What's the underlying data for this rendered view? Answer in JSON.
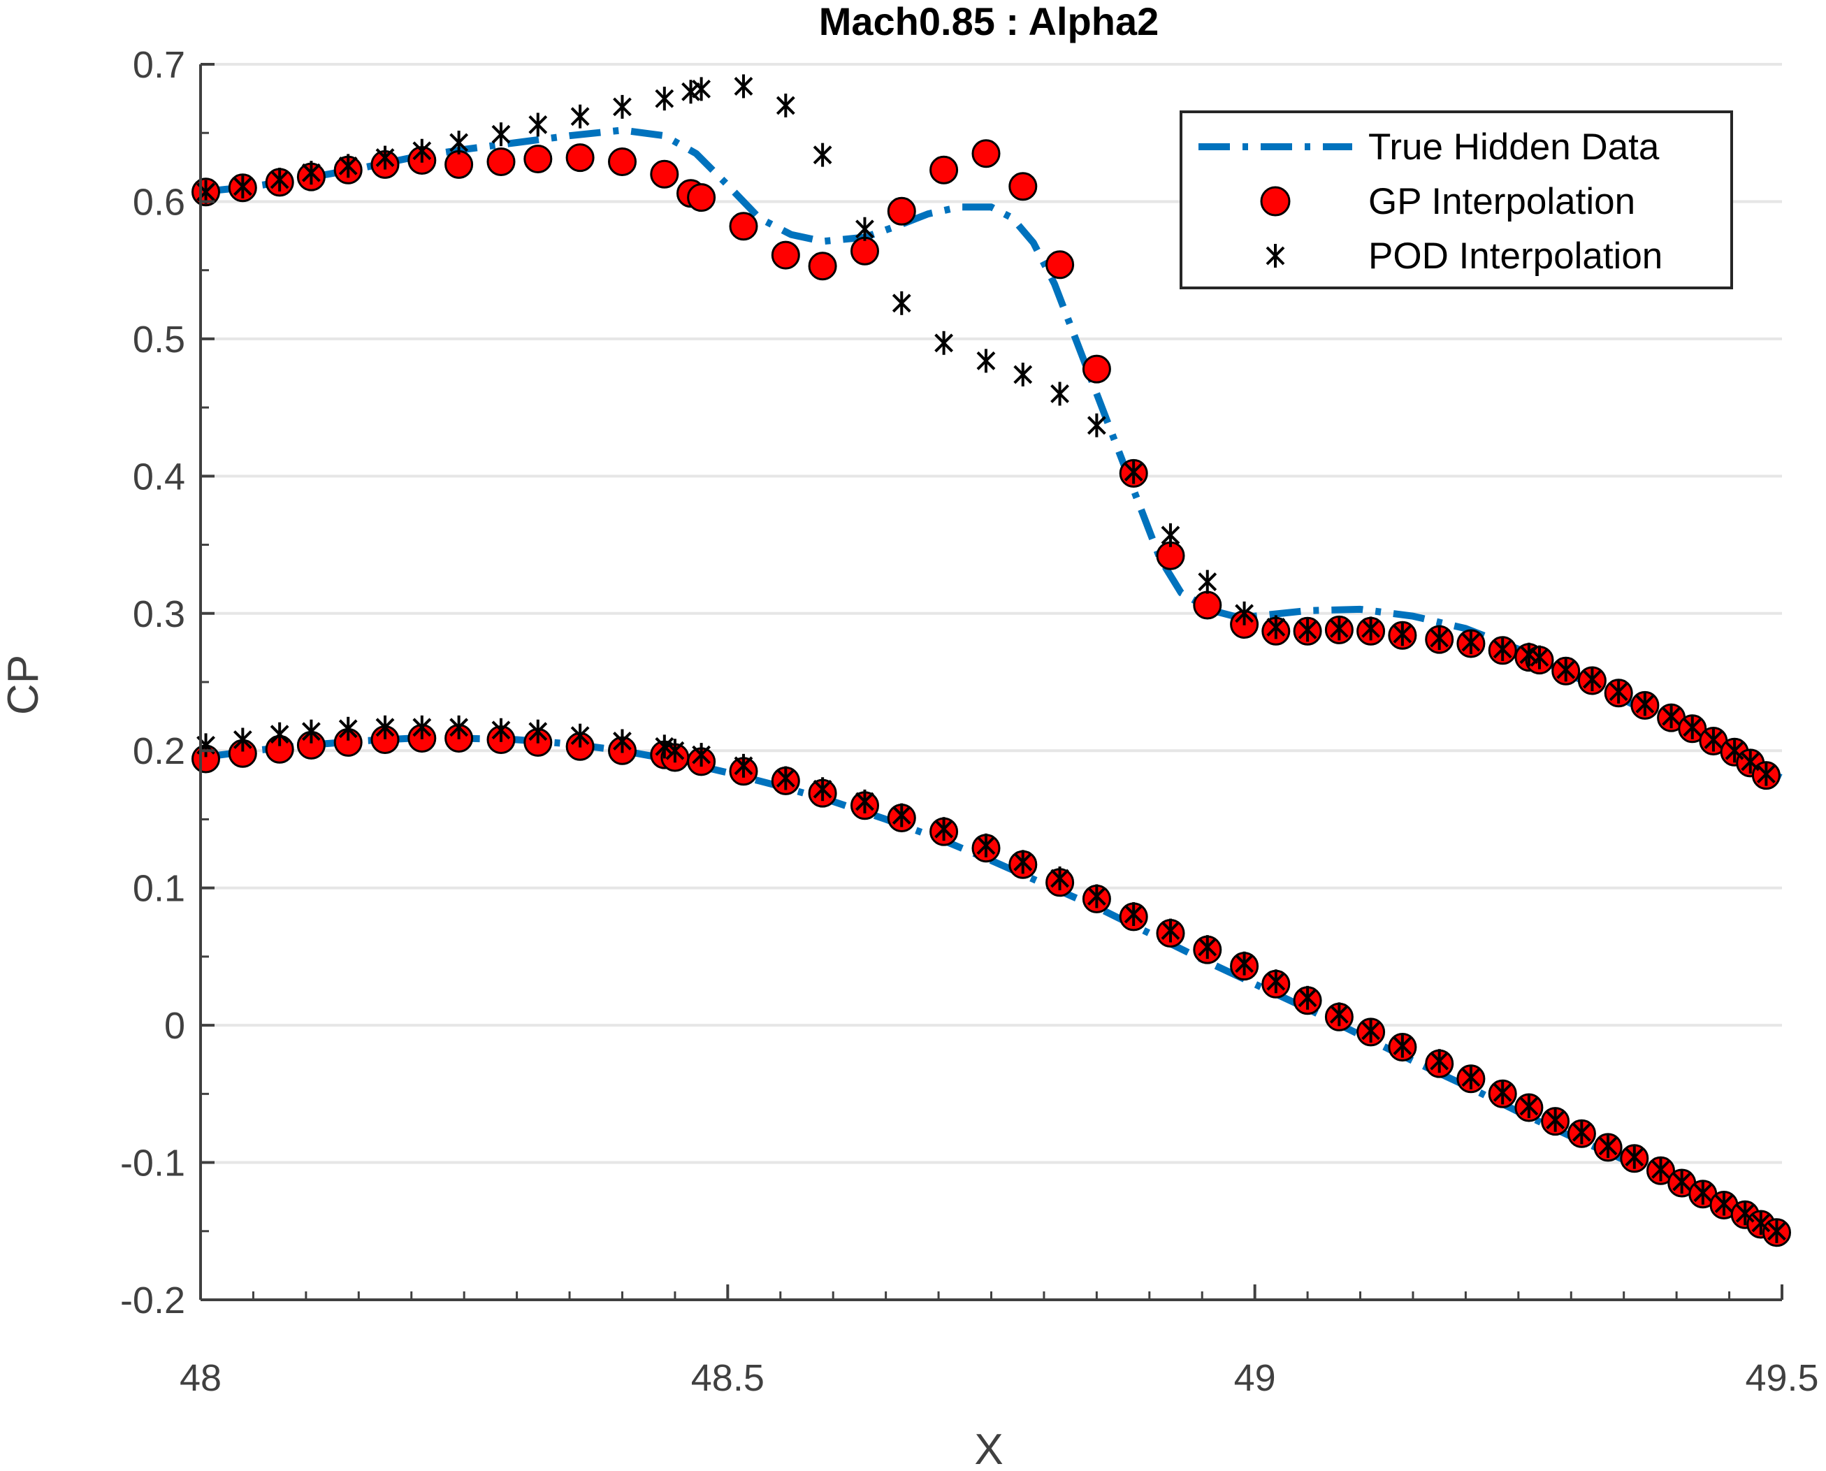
{
  "chart_data": {
    "type": "scatter",
    "title": "Mach0.85 : Alpha2",
    "xlabel": "X",
    "ylabel": "CP",
    "xlim": [
      48,
      49.5
    ],
    "ylim": [
      -0.2,
      0.7
    ],
    "xticks": [
      "48",
      "48.5",
      "49",
      "49.5"
    ],
    "yticks": [
      "-0.2",
      "-0.1",
      "0",
      "0.1",
      "0.2",
      "0.3",
      "0.4",
      "0.5",
      "0.6",
      "0.7"
    ],
    "grid": "horizontal",
    "legend_position": "top-right",
    "colors": {
      "true": "#0072BD",
      "gp_fill": "#FF0000",
      "pod": "#000000",
      "grid": "#E6E6E6",
      "axis": "#404040"
    },
    "series": [
      {
        "name": "True Hidden Data",
        "style": "dash-dot line",
        "segments": [
          {
            "x": [
              48.0,
              48.05,
              48.1,
              48.15,
              48.2,
              48.25,
              48.3,
              48.35,
              48.4,
              48.44,
              48.47,
              48.5,
              48.53,
              48.56,
              48.59,
              48.63,
              48.66,
              48.69,
              48.72,
              48.75,
              48.77,
              48.79,
              48.81,
              48.83,
              48.85,
              48.87,
              48.89,
              48.91,
              48.93,
              48.96,
              48.98,
              49.0,
              49.05,
              49.1,
              49.15,
              49.2,
              49.25,
              49.3,
              49.35,
              49.4,
              49.45,
              49.5
            ],
            "y": [
              0.607,
              0.611,
              0.617,
              0.624,
              0.632,
              0.638,
              0.643,
              0.648,
              0.652,
              0.648,
              0.635,
              0.612,
              0.588,
              0.576,
              0.571,
              0.574,
              0.582,
              0.591,
              0.596,
              0.596,
              0.588,
              0.57,
              0.54,
              0.5,
              0.46,
              0.42,
              0.38,
              0.34,
              0.315,
              0.302,
              0.298,
              0.298,
              0.302,
              0.303,
              0.298,
              0.289,
              0.274,
              0.255,
              0.237,
              0.218,
              0.198,
              0.18
            ]
          },
          {
            "x": [
              48.0,
              48.05,
              48.1,
              48.15,
              48.2,
              48.25,
              48.3,
              48.35,
              48.4,
              48.45,
              48.5,
              48.55,
              48.6,
              48.65,
              48.7,
              48.75,
              48.8,
              48.85,
              48.9,
              48.95,
              49.0,
              49.05,
              49.1,
              49.15,
              49.2,
              49.25,
              49.3,
              49.35,
              49.4,
              49.45,
              49.5
            ],
            "y": [
              0.195,
              0.2,
              0.204,
              0.207,
              0.209,
              0.209,
              0.208,
              0.205,
              0.2,
              0.193,
              0.184,
              0.174,
              0.163,
              0.15,
              0.136,
              0.12,
              0.103,
              0.086,
              0.067,
              0.048,
              0.03,
              0.012,
              -0.007,
              -0.026,
              -0.044,
              -0.063,
              -0.081,
              -0.098,
              -0.115,
              -0.132,
              -0.152
            ]
          }
        ]
      },
      {
        "name": "GP Interpolation",
        "style": "red circles",
        "x": [
          48.005,
          48.04,
          48.075,
          48.105,
          48.14,
          48.175,
          48.21,
          48.245,
          48.285,
          48.32,
          48.36,
          48.4,
          48.44,
          48.465,
          48.475,
          48.515,
          48.555,
          48.59,
          48.63,
          48.665,
          48.705,
          48.745,
          48.78,
          48.815,
          48.85,
          48.885,
          48.92,
          48.955,
          48.99,
          49.02,
          49.05,
          49.08,
          49.11,
          49.14,
          49.175,
          49.205,
          49.235,
          49.26,
          49.27,
          49.295,
          49.32,
          49.345,
          49.37,
          49.395,
          49.415,
          49.435,
          49.455,
          49.47,
          49.485,
          48.005,
          48.04,
          48.075,
          48.105,
          48.14,
          48.175,
          48.21,
          48.245,
          48.285,
          48.32,
          48.36,
          48.4,
          48.44,
          48.45,
          48.475,
          48.515,
          48.555,
          48.59,
          48.63,
          48.665,
          48.705,
          48.745,
          48.78,
          48.815,
          48.85,
          48.885,
          48.92,
          48.955,
          48.99,
          49.02,
          49.05,
          49.08,
          49.11,
          49.14,
          49.175,
          49.205,
          49.235,
          49.26,
          49.285,
          49.31,
          49.335,
          49.36,
          49.385,
          49.405,
          49.425,
          49.445,
          49.465,
          49.48,
          49.495
        ],
        "y": [
          0.607,
          0.61,
          0.614,
          0.618,
          0.623,
          0.627,
          0.63,
          0.627,
          0.629,
          0.631,
          0.632,
          0.629,
          0.62,
          0.606,
          0.603,
          0.582,
          0.561,
          0.553,
          0.564,
          0.593,
          0.623,
          0.635,
          0.611,
          0.554,
          0.478,
          0.402,
          0.342,
          0.306,
          0.292,
          0.287,
          0.287,
          0.288,
          0.287,
          0.284,
          0.281,
          0.278,
          0.273,
          0.268,
          0.266,
          0.258,
          0.251,
          0.242,
          0.233,
          0.224,
          0.216,
          0.207,
          0.199,
          0.191,
          0.182,
          0.194,
          0.198,
          0.201,
          0.204,
          0.206,
          0.208,
          0.209,
          0.209,
          0.208,
          0.206,
          0.203,
          0.2,
          0.197,
          0.195,
          0.192,
          0.185,
          0.178,
          0.169,
          0.16,
          0.151,
          0.141,
          0.129,
          0.117,
          0.104,
          0.092,
          0.079,
          0.067,
          0.055,
          0.043,
          0.03,
          0.018,
          0.006,
          -0.005,
          -0.016,
          -0.028,
          -0.039,
          -0.05,
          -0.06,
          -0.07,
          -0.079,
          -0.089,
          -0.097,
          -0.106,
          -0.115,
          -0.123,
          -0.131,
          -0.138,
          -0.145,
          -0.151
        ]
      },
      {
        "name": "POD Interpolation",
        "style": "black asterisks",
        "x": [
          48.005,
          48.04,
          48.075,
          48.105,
          48.14,
          48.175,
          48.21,
          48.245,
          48.285,
          48.32,
          48.36,
          48.4,
          48.44,
          48.465,
          48.475,
          48.515,
          48.555,
          48.59,
          48.63,
          48.665,
          48.705,
          48.745,
          48.78,
          48.815,
          48.85,
          48.885,
          48.92,
          48.955,
          48.99,
          49.02,
          49.05,
          49.08,
          49.11,
          49.14,
          49.175,
          49.205,
          49.235,
          49.26,
          49.27,
          49.295,
          49.32,
          49.345,
          49.37,
          49.395,
          49.415,
          49.435,
          49.455,
          49.47,
          49.485,
          48.005,
          48.04,
          48.075,
          48.105,
          48.14,
          48.175,
          48.21,
          48.245,
          48.285,
          48.32,
          48.36,
          48.4,
          48.44,
          48.45,
          48.475,
          48.515,
          48.555,
          48.59,
          48.63,
          48.665,
          48.705,
          48.745,
          48.78,
          48.815,
          48.85,
          48.885,
          48.92,
          48.955,
          48.99,
          49.02,
          49.05,
          49.08,
          49.11,
          49.14,
          49.175,
          49.205,
          49.235,
          49.26,
          49.285,
          49.31,
          49.335,
          49.36,
          49.385,
          49.405,
          49.425,
          49.445,
          49.465,
          49.48,
          49.495
        ],
        "y": [
          0.607,
          0.611,
          0.616,
          0.621,
          0.626,
          0.632,
          0.637,
          0.643,
          0.649,
          0.656,
          0.662,
          0.669,
          0.675,
          0.68,
          0.682,
          0.684,
          0.67,
          0.634,
          0.58,
          0.526,
          0.497,
          0.484,
          0.474,
          0.46,
          0.437,
          0.403,
          0.357,
          0.323,
          0.3,
          0.29,
          0.288,
          0.289,
          0.289,
          0.285,
          0.282,
          0.279,
          0.274,
          0.27,
          0.268,
          0.259,
          0.252,
          0.243,
          0.234,
          0.225,
          0.217,
          0.208,
          0.2,
          0.192,
          0.183,
          0.204,
          0.208,
          0.212,
          0.214,
          0.216,
          0.217,
          0.217,
          0.217,
          0.215,
          0.214,
          0.211,
          0.207,
          0.203,
          0.2,
          0.197,
          0.189,
          0.18,
          0.172,
          0.163,
          0.153,
          0.143,
          0.131,
          0.119,
          0.107,
          0.094,
          0.081,
          0.069,
          0.057,
          0.045,
          0.032,
          0.02,
          0.008,
          -0.004,
          -0.015,
          -0.026,
          -0.038,
          -0.049,
          -0.059,
          -0.069,
          -0.078,
          -0.088,
          -0.096,
          -0.105,
          -0.114,
          -0.122,
          -0.13,
          -0.137,
          -0.144,
          -0.15
        ]
      }
    ]
  }
}
